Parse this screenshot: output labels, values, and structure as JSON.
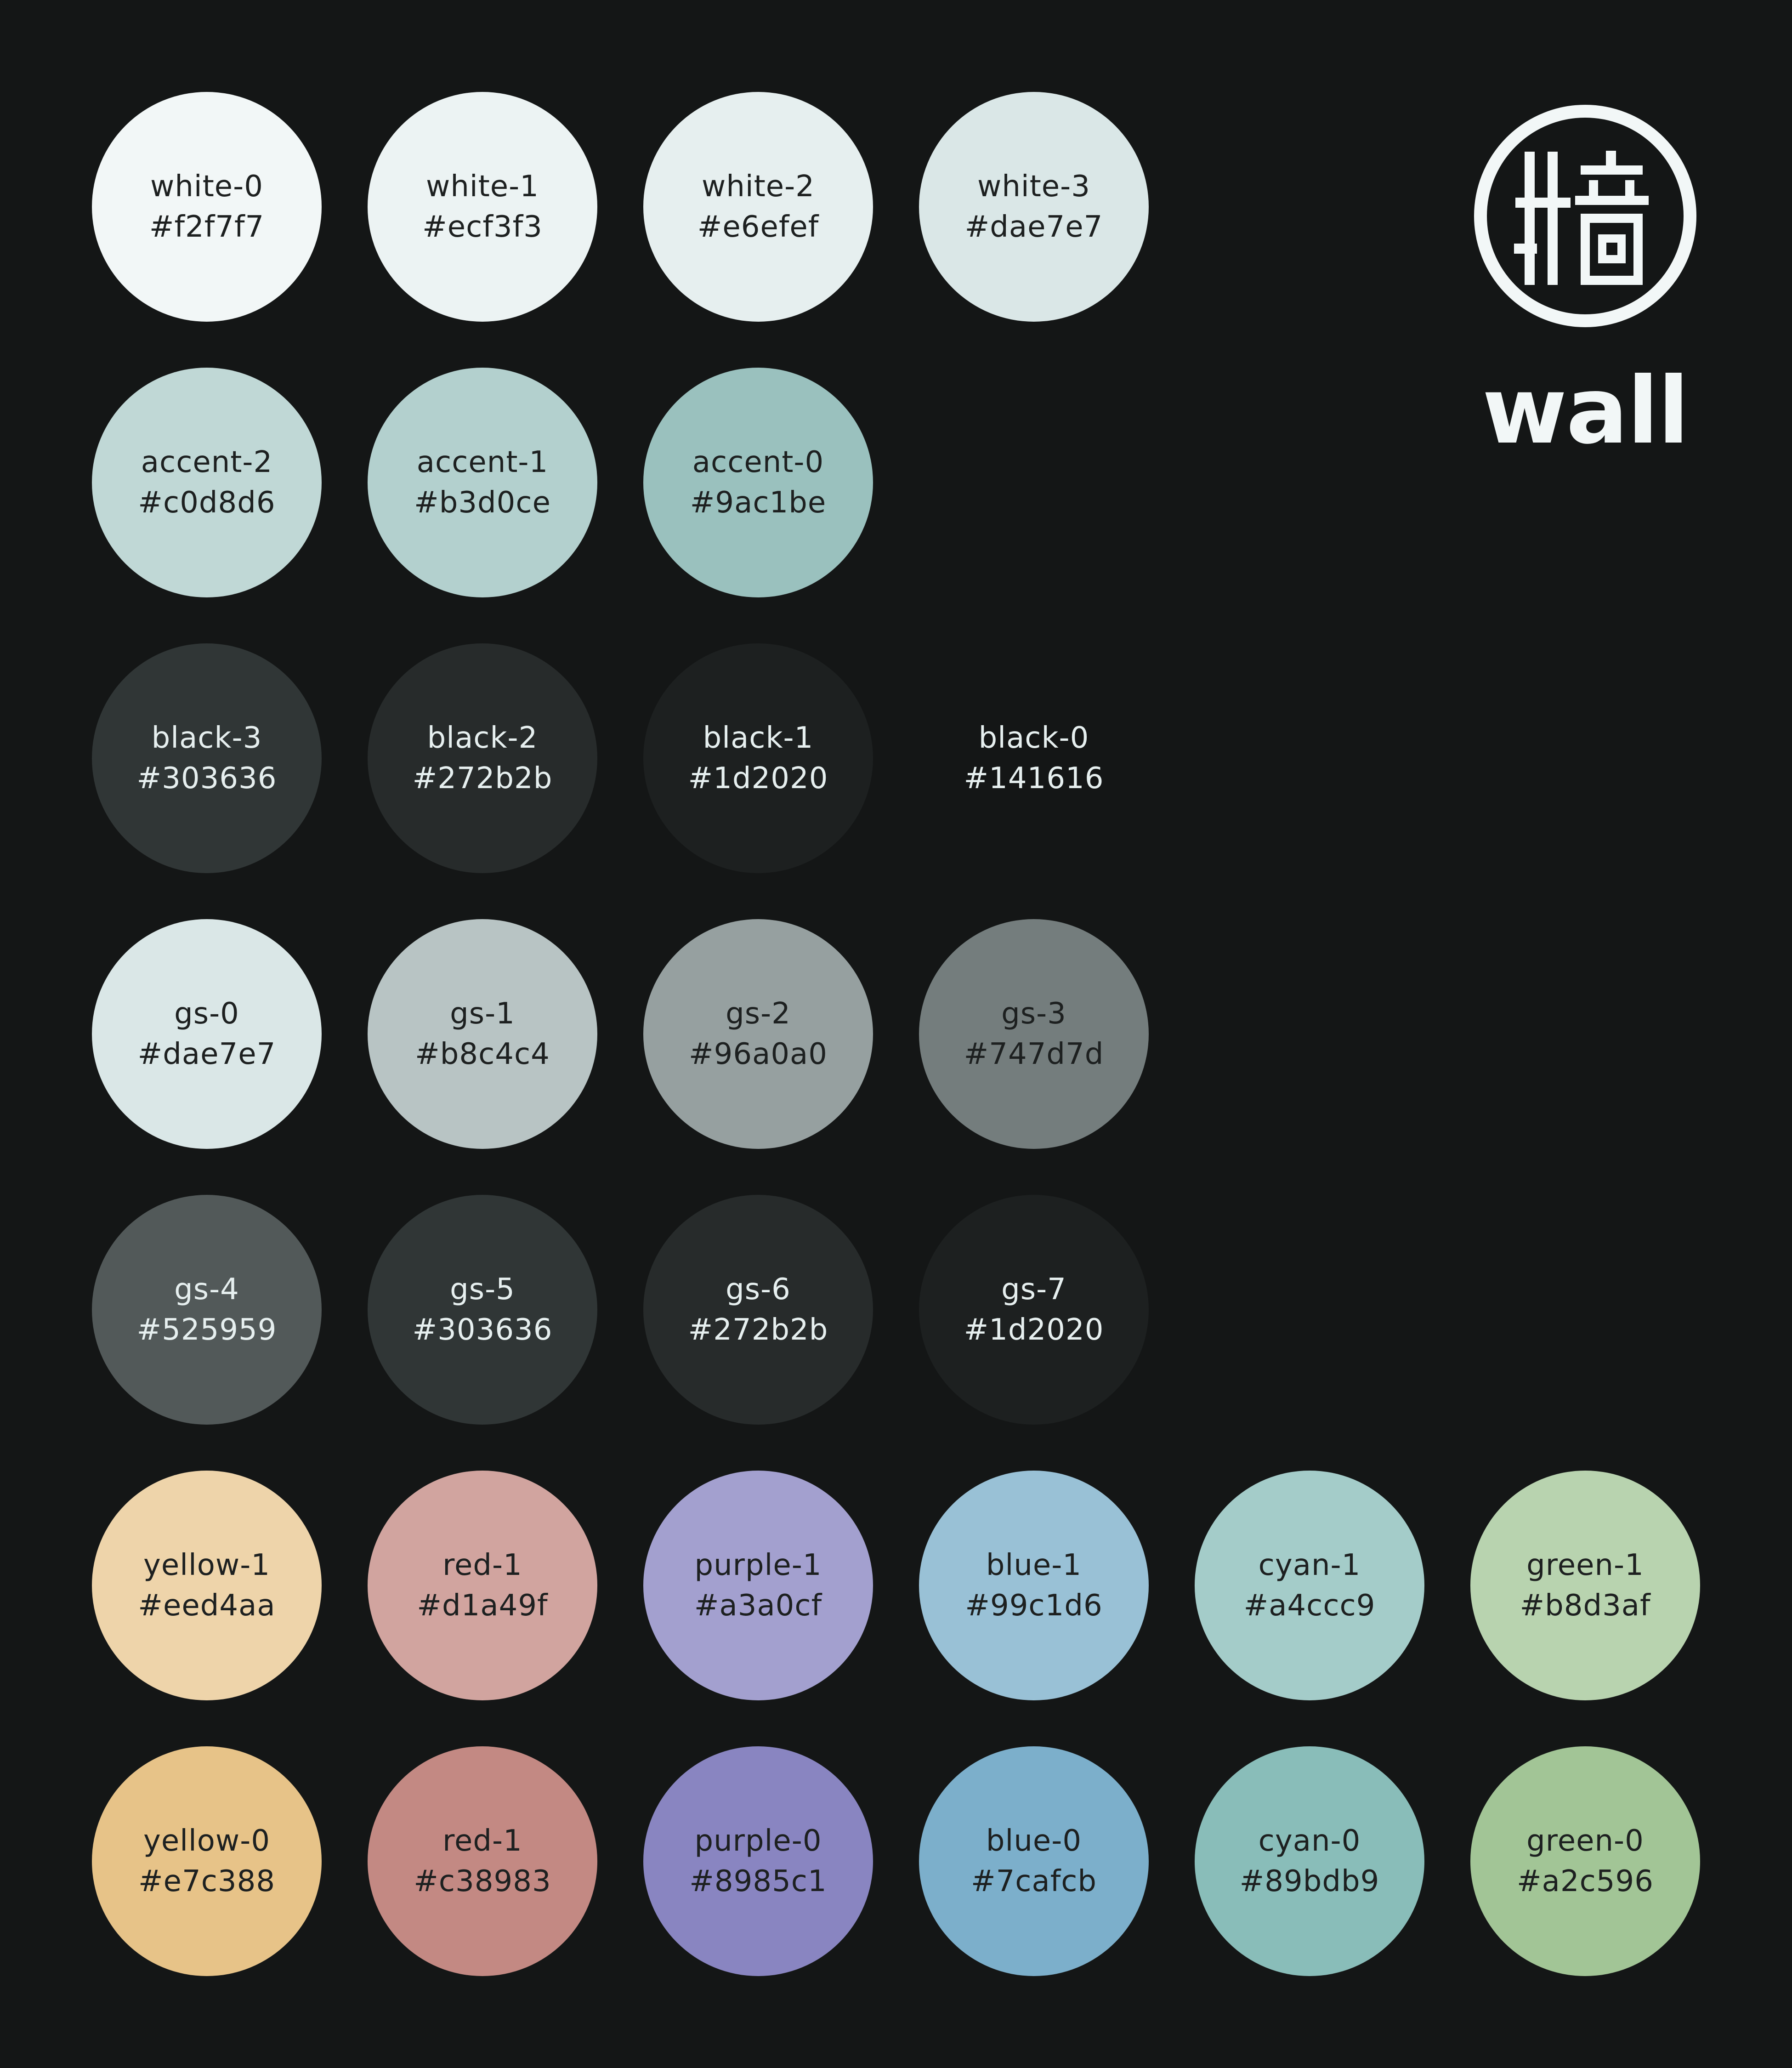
{
  "brand": {
    "name": "wall",
    "glyph": "牆",
    "color": "#f2f7f7"
  },
  "swatches": [
    {
      "name": "white-0",
      "hex": "#f2f7f7",
      "text": "dark"
    },
    {
      "name": "white-1",
      "hex": "#ecf3f3",
      "text": "dark"
    },
    {
      "name": "white-2",
      "hex": "#e6efef",
      "text": "dark"
    },
    {
      "name": "white-3",
      "hex": "#dae7e7",
      "text": "dark"
    },
    {
      "name": "accent-2",
      "hex": "#c0d8d6",
      "text": "dark"
    },
    {
      "name": "accent-1",
      "hex": "#b3d0ce",
      "text": "dark"
    },
    {
      "name": "accent-0",
      "hex": "#9ac1be",
      "text": "dark"
    },
    {
      "name": "black-3",
      "hex": "#303636",
      "text": "light"
    },
    {
      "name": "black-2",
      "hex": "#272b2b",
      "text": "light"
    },
    {
      "name": "black-1",
      "hex": "#1d2020",
      "text": "light"
    },
    {
      "name": "black-0",
      "hex": "#141616",
      "text": "light"
    },
    {
      "name": "gs-0",
      "hex": "#dae7e7",
      "text": "dark"
    },
    {
      "name": "gs-1",
      "hex": "#b8c4c4",
      "text": "dark"
    },
    {
      "name": "gs-2",
      "hex": "#96a0a0",
      "text": "dark"
    },
    {
      "name": "gs-3",
      "hex": "#747d7d",
      "text": "dark"
    },
    {
      "name": "gs-4",
      "hex": "#525959",
      "text": "light"
    },
    {
      "name": "gs-5",
      "hex": "#303636",
      "text": "light"
    },
    {
      "name": "gs-6",
      "hex": "#272b2b",
      "text": "light"
    },
    {
      "name": "gs-7",
      "hex": "#1d2020",
      "text": "light"
    },
    {
      "name": "yellow-1",
      "hex": "#eed4aa",
      "text": "dark"
    },
    {
      "name": "red-1",
      "hex": "#d1a49f",
      "text": "dark"
    },
    {
      "name": "purple-1",
      "hex": "#a3a0cf",
      "text": "dark"
    },
    {
      "name": "blue-1",
      "hex": "#99c1d6",
      "text": "dark"
    },
    {
      "name": "cyan-1",
      "hex": "#a4ccc9",
      "text": "dark"
    },
    {
      "name": "green-1",
      "hex": "#b8d3af",
      "text": "dark"
    },
    {
      "name": "yellow-0",
      "hex": "#e7c388",
      "text": "dark"
    },
    {
      "name": "red-1",
      "hex": "#c38983",
      "text": "dark"
    },
    {
      "name": "purple-0",
      "hex": "#8985c1",
      "text": "dark"
    },
    {
      "name": "blue-0",
      "hex": "#7cafcb",
      "text": "dark"
    },
    {
      "name": "cyan-0",
      "hex": "#89bdb9",
      "text": "dark"
    },
    {
      "name": "green-0",
      "hex": "#a2c596",
      "text": "dark"
    }
  ]
}
